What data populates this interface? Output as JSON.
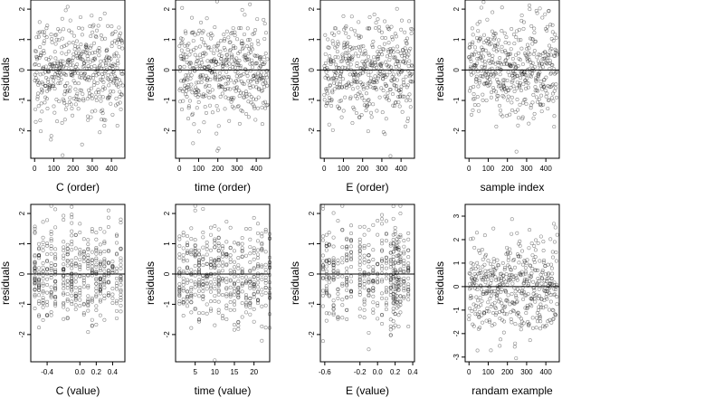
{
  "chart_data": [
    {
      "type": "scatter",
      "xlabel": "C (order)",
      "ylabel": "residuals",
      "xlim": [
        -20,
        470
      ],
      "ylim": [
        -2.9,
        2.3
      ],
      "xticks": [
        0,
        100,
        200,
        300,
        400
      ],
      "yticks": [
        -2,
        -1,
        0,
        1,
        2
      ],
      "reference_line_y": 0,
      "x_values": [
        0,
        20,
        40,
        60,
        80,
        100,
        120,
        140,
        160,
        180,
        200,
        220,
        240,
        260,
        280,
        300,
        320,
        340,
        360,
        380,
        400,
        420,
        440,
        460
      ],
      "points": {
        "kind": "residuals_by_order",
        "n": 460,
        "mean": 0,
        "sd": 0.8
      }
    },
    {
      "type": "scatter",
      "xlabel": "time (order)",
      "ylabel": "residuals",
      "xlim": [
        -20,
        470
      ],
      "ylim": [
        -2.9,
        2.3
      ],
      "xticks": [
        0,
        100,
        200,
        300,
        400
      ],
      "yticks": [
        -2,
        -1,
        0,
        1,
        2
      ],
      "reference_line_y": 0,
      "points": {
        "kind": "residuals_by_order",
        "n": 460,
        "mean": 0,
        "sd": 0.8
      }
    },
    {
      "type": "scatter",
      "xlabel": "E (order)",
      "ylabel": "residuals",
      "xlim": [
        -20,
        470
      ],
      "ylim": [
        -2.9,
        2.3
      ],
      "xticks": [
        0,
        100,
        200,
        300,
        400
      ],
      "yticks": [
        -2,
        -1,
        0,
        1,
        2
      ],
      "reference_line_y": 0,
      "points": {
        "kind": "residuals_by_order_trend",
        "n": 460,
        "mean": 0,
        "sd": 0.8
      }
    },
    {
      "type": "scatter",
      "xlabel": "sample index",
      "ylabel": "residuals",
      "xlim": [
        -20,
        470
      ],
      "ylim": [
        -2.9,
        2.3
      ],
      "xticks": [
        0,
        100,
        200,
        300,
        400
      ],
      "yticks": [
        -2,
        -1,
        0,
        1,
        2
      ],
      "reference_line_y": 0,
      "points": {
        "kind": "residuals_by_order",
        "n": 460,
        "mean": 0,
        "sd": 0.8
      }
    },
    {
      "type": "scatter",
      "xlabel": "C (value)",
      "ylabel": "residuals",
      "xlim": [
        -0.6,
        0.55
      ],
      "ylim": [
        -2.9,
        2.3
      ],
      "xticks": [
        -0.4,
        0.0,
        0.2,
        0.4
      ],
      "xtick_labels": [
        "-0.4",
        "0.0",
        "0.2",
        "0.4"
      ],
      "yticks": [
        -2,
        -1,
        0,
        1,
        2
      ],
      "reference_line_y": 0,
      "x_levels": [
        -0.55,
        -0.5,
        -0.45,
        -0.4,
        -0.35,
        -0.3,
        -0.2,
        -0.15,
        -0.1,
        -0.05,
        0.0,
        0.05,
        0.1,
        0.15,
        0.2,
        0.25,
        0.3,
        0.35,
        0.4,
        0.45,
        0.5
      ],
      "points": {
        "kind": "residuals_by_level",
        "n": 460,
        "mean": 0,
        "sd": 0.8
      }
    },
    {
      "type": "scatter",
      "xlabel": "time (value)",
      "ylabel": "residuals",
      "xlim": [
        0,
        24
      ],
      "ylim": [
        -2.9,
        2.3
      ],
      "xticks": [
        5,
        10,
        15,
        20
      ],
      "xtick_labels": [
        "5",
        "10",
        "15",
        "20"
      ],
      "yticks": [
        -2,
        -1,
        0,
        1,
        2
      ],
      "reference_line_y": 0,
      "x_levels": [
        1,
        2,
        3,
        4,
        5,
        6,
        7,
        8,
        9,
        10,
        11,
        12,
        13,
        14,
        15,
        16,
        17,
        18,
        19,
        20,
        21,
        22,
        23,
        24
      ],
      "points": {
        "kind": "residuals_by_level",
        "n": 460,
        "mean": 0,
        "sd": 0.8
      }
    },
    {
      "type": "scatter",
      "xlabel": "E (value)",
      "ylabel": "residuals",
      "xlim": [
        -0.65,
        0.42
      ],
      "ylim": [
        -2.9,
        2.3
      ],
      "xticks": [
        -0.6,
        -0.2,
        0.0,
        0.2,
        0.4
      ],
      "xtick_labels": [
        "-0.6",
        "-0.2",
        "0.0",
        "0.2",
        "0.4"
      ],
      "yticks": [
        -2,
        -1,
        0,
        1,
        2
      ],
      "reference_line_y": 0,
      "x_levels": [
        -0.62,
        -0.58,
        -0.55,
        -0.5,
        -0.45,
        -0.4,
        -0.35,
        -0.3,
        -0.2,
        -0.15,
        -0.1,
        -0.05,
        0.0,
        0.05,
        0.1,
        0.15,
        0.18,
        0.2,
        0.22,
        0.24,
        0.26,
        0.3,
        0.35
      ],
      "points": {
        "kind": "residuals_by_level",
        "n": 460,
        "mean": 0,
        "sd": 0.8
      }
    },
    {
      "type": "scatter",
      "xlabel": "randam example",
      "ylabel": "residuals",
      "xlim": [
        -20,
        470
      ],
      "ylim": [
        -3.2,
        3.5
      ],
      "xticks": [
        0,
        100,
        200,
        300,
        400
      ],
      "yticks": [
        -3,
        -2,
        -1,
        0,
        1,
        2,
        3
      ],
      "reference_line_y": 0,
      "points": {
        "kind": "residuals_by_order",
        "n": 460,
        "mean": 0,
        "sd": 1.0
      }
    }
  ]
}
